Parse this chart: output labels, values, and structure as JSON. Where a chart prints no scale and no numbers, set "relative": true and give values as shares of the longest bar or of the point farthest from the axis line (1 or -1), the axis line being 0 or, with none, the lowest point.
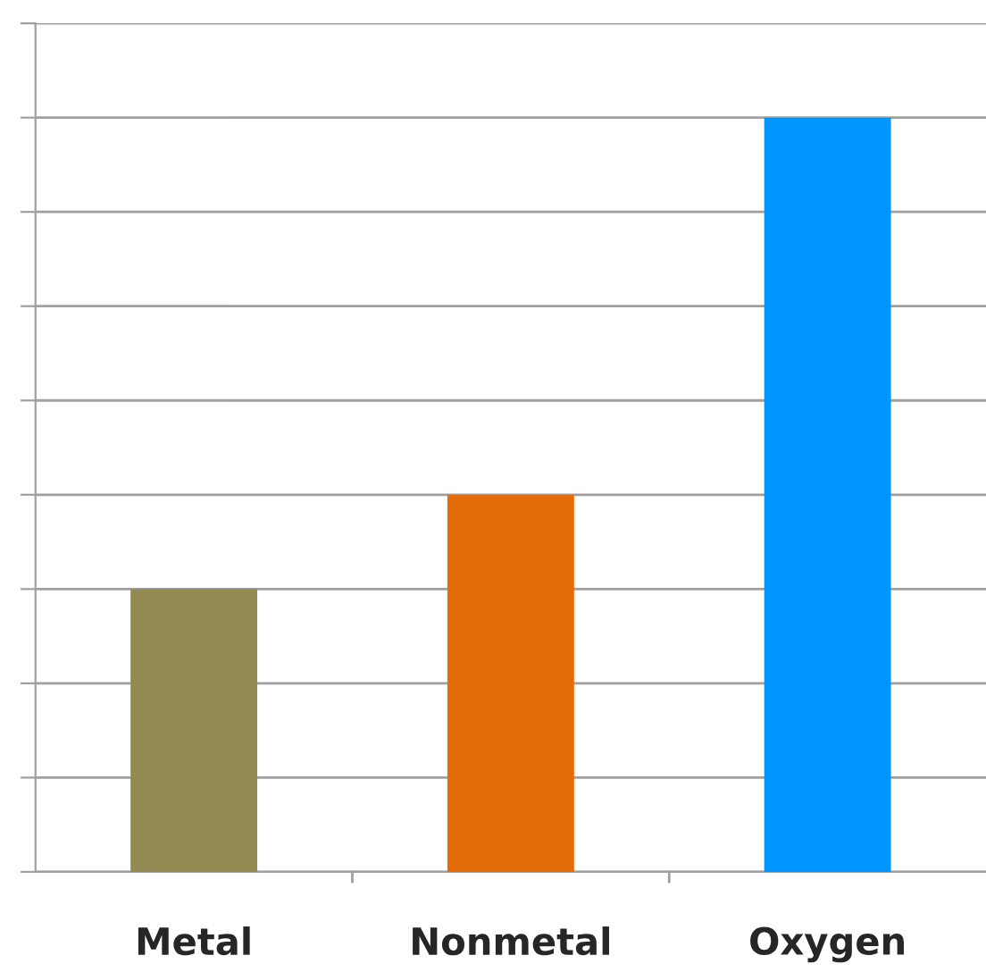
{
  "chart_data": {
    "type": "bar",
    "relative": true,
    "categories": [
      "Metal",
      "Nonmetal",
      "Oxygen"
    ],
    "values": [
      0.375,
      0.5,
      1
    ],
    "colors": [
      "#948a54",
      "#e46c0a",
      "#0096ff"
    ],
    "grid": "y"
  }
}
